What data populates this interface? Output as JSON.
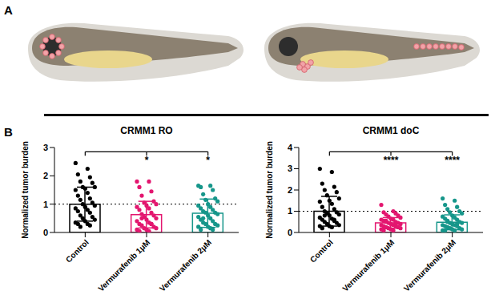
{
  "panel_labels": [
    "A",
    "B"
  ],
  "chart_data": [
    {
      "type": "bar",
      "title": "CRMM1 RO",
      "y_label": "Normalized tumor burden",
      "categories": [
        "Control",
        "Vermurafenib 1μM",
        "Vermurafenib 2μM"
      ],
      "values": [
        1.0,
        0.63,
        0.68
      ],
      "error": [
        0.6,
        0.47,
        0.5
      ],
      "colors": [
        "#000000",
        "#e3166f",
        "#16968a"
      ],
      "points": [
        [
          2.45,
          2.25,
          2.05,
          1.95,
          1.8,
          1.75,
          1.6,
          1.6,
          1.55,
          1.5,
          1.4,
          1.3,
          1.2,
          1.15,
          1.05,
          1.0,
          0.95,
          0.9,
          0.85,
          0.8,
          0.75,
          0.7,
          0.6,
          0.55,
          0.5,
          0.45,
          0.4,
          0.35,
          0.3,
          0.3,
          0.25,
          0.2
        ],
        [
          1.8,
          1.8,
          1.6,
          1.45,
          1.3,
          1.1,
          1.05,
          1.0,
          0.95,
          0.9,
          0.85,
          0.8,
          0.7,
          0.65,
          0.6,
          0.55,
          0.5,
          0.45,
          0.4,
          0.35,
          0.3,
          0.3,
          0.25,
          0.2,
          0.15,
          0.15,
          0.1,
          0.1,
          0.05,
          0.05,
          0.3,
          0.5
        ],
        [
          1.65,
          1.65,
          1.6,
          1.5,
          1.35,
          1.2,
          1.15,
          1.1,
          1.0,
          0.95,
          0.9,
          0.85,
          0.8,
          0.75,
          0.7,
          0.7,
          0.65,
          0.6,
          0.55,
          0.5,
          0.45,
          0.4,
          0.35,
          0.3,
          0.3,
          0.25,
          0.2,
          0.2,
          0.15,
          0.1,
          0.1,
          0.5
        ]
      ],
      "reference_line": 1,
      "significance": [
        {
          "from": 0,
          "to": 1,
          "label": "*"
        },
        {
          "from": 0,
          "to": 2,
          "label": "*"
        }
      ],
      "ylim": [
        0,
        3
      ],
      "yticks": [
        0,
        1,
        2,
        3
      ]
    },
    {
      "type": "bar",
      "title": "CRMM1 doC",
      "y_label": "Normalized tumor burden",
      "categories": [
        "Control",
        "Vermurafenib 1μM",
        "Vermurafenib 2μM"
      ],
      "values": [
        1.0,
        0.45,
        0.48
      ],
      "error": [
        0.7,
        0.25,
        0.35
      ],
      "colors": [
        "#000000",
        "#e3166f",
        "#16968a"
      ],
      "points": [
        [
          3.0,
          2.85,
          2.3,
          2.15,
          2.0,
          1.9,
          1.75,
          1.6,
          1.5,
          1.45,
          1.35,
          1.2,
          1.1,
          1.0,
          0.95,
          0.9,
          0.85,
          0.8,
          0.7,
          0.65,
          0.6,
          0.55,
          0.5,
          0.45,
          0.4,
          0.35,
          0.3,
          0.3,
          0.25,
          0.2,
          0.6,
          0.8
        ],
        [
          1.3,
          1.0,
          0.95,
          0.9,
          0.85,
          0.8,
          0.75,
          0.7,
          0.65,
          0.6,
          0.6,
          0.55,
          0.5,
          0.5,
          0.45,
          0.45,
          0.4,
          0.4,
          0.35,
          0.35,
          0.3,
          0.3,
          0.25,
          0.25,
          0.2,
          0.2,
          0.15,
          0.15,
          0.1,
          0.1,
          0.45,
          0.55
        ],
        [
          1.6,
          1.5,
          1.3,
          1.2,
          1.1,
          1.0,
          0.95,
          0.9,
          0.8,
          0.75,
          0.7,
          0.65,
          0.6,
          0.55,
          0.5,
          0.45,
          0.45,
          0.4,
          0.35,
          0.35,
          0.3,
          0.3,
          0.25,
          0.2,
          0.2,
          0.15,
          0.15,
          0.1,
          0.1,
          0.1,
          0.4,
          0.5
        ]
      ],
      "reference_line": 1,
      "significance": [
        {
          "from": 0,
          "to": 1,
          "label": "****"
        },
        {
          "from": 0,
          "to": 2,
          "label": "****"
        }
      ],
      "ylim": [
        0,
        4
      ],
      "yticks": [
        0,
        1,
        2,
        3,
        4
      ]
    }
  ]
}
